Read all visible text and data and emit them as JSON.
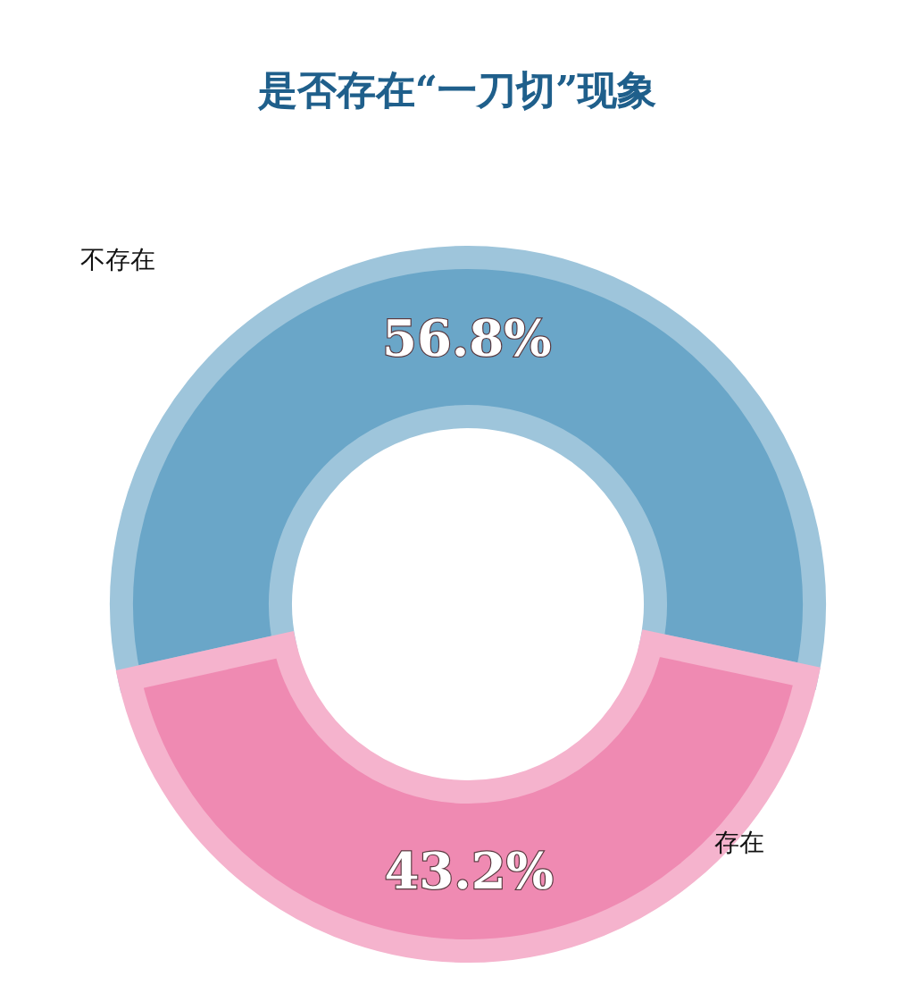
{
  "chart_data": {
    "type": "donut",
    "title": "是否存在“一刀切”现象",
    "categories": [
      "不存在",
      "存在"
    ],
    "values": [
      56.8,
      43.2
    ],
    "colors": [
      "#6aa6c8",
      "#ef8ab2"
    ],
    "value_labels": [
      "56.8%",
      "43.2%"
    ],
    "legend": false
  }
}
